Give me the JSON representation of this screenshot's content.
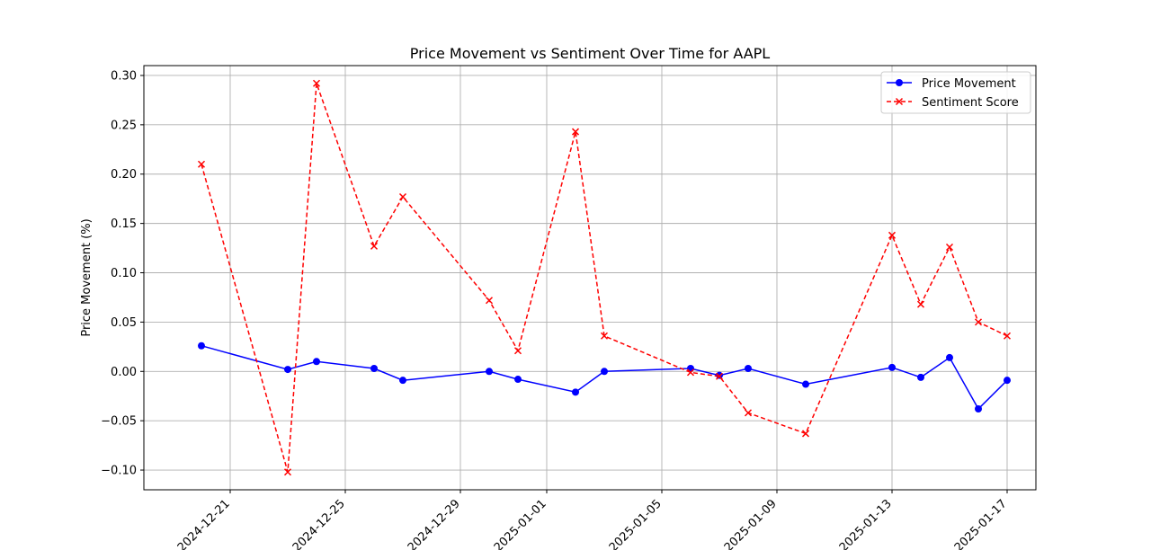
{
  "chart_data": {
    "type": "line",
    "title": "Price Movement vs Sentiment Over Time for AAPL",
    "xlabel": "",
    "ylabel": "Price Movement (%)",
    "xlim": [
      "2024-12-18",
      "2025-01-18"
    ],
    "ylim": [
      -0.12,
      0.31
    ],
    "x_ticks": [
      "2024-12-21",
      "2024-12-25",
      "2024-12-29",
      "2025-01-01",
      "2025-01-05",
      "2025-01-09",
      "2025-01-13",
      "2025-01-17"
    ],
    "y_ticks": [
      -0.1,
      -0.05,
      0.0,
      0.05,
      0.1,
      0.15,
      0.2,
      0.25,
      0.3
    ],
    "y_tick_labels": [
      "−0.10",
      "−0.05",
      "0.00",
      "0.05",
      "0.10",
      "0.15",
      "0.20",
      "0.25",
      "0.30"
    ],
    "grid": true,
    "legend_position": "top-right",
    "x": [
      "2024-12-20",
      "2024-12-23",
      "2024-12-24",
      "2024-12-26",
      "2024-12-27",
      "2024-12-30",
      "2024-12-31",
      "2025-01-02",
      "2025-01-03",
      "2025-01-06",
      "2025-01-07",
      "2025-01-08",
      "2025-01-10",
      "2025-01-13",
      "2025-01-14",
      "2025-01-15",
      "2025-01-16",
      "2025-01-17"
    ],
    "series": [
      {
        "name": "Price Movement",
        "color": "#0000ff",
        "line_style": "solid",
        "marker": "circle",
        "values": [
          0.026,
          0.002,
          0.01,
          0.003,
          -0.009,
          0.0,
          -0.008,
          -0.021,
          0.0,
          0.003,
          -0.004,
          0.003,
          -0.013,
          0.004,
          -0.006,
          0.014,
          -0.038,
          -0.009
        ]
      },
      {
        "name": "Sentiment Score",
        "color": "#ff0000",
        "line_style": "dashed",
        "marker": "x",
        "values": [
          0.21,
          -0.102,
          0.292,
          0.127,
          0.177,
          0.072,
          0.021,
          0.243,
          0.036,
          -0.001,
          -0.005,
          -0.042,
          -0.063,
          0.138,
          0.068,
          0.126,
          0.05,
          0.036
        ]
      }
    ]
  }
}
